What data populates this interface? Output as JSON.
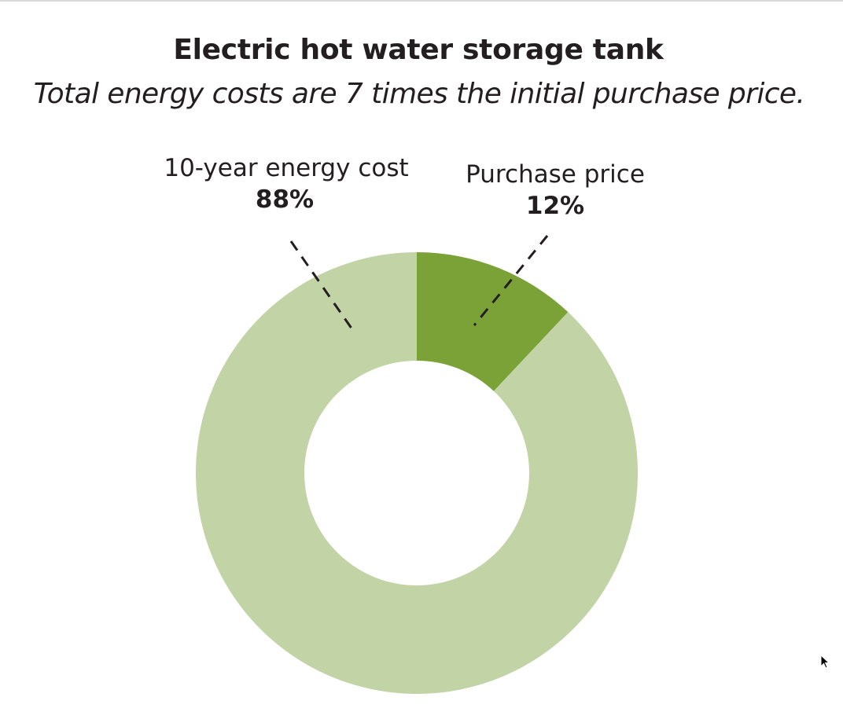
{
  "chart_data": {
    "type": "pie",
    "title": "Electric hot water storage tank",
    "subtitle": "Total energy costs are 7 times the initial purchase price.",
    "slices": [
      {
        "label": "Purchase price",
        "value": 12,
        "value_label": "12%",
        "color": "#7aa237"
      },
      {
        "label": "10-year energy cost",
        "value": 88,
        "value_label": "88%",
        "color": "#c2d3a6"
      }
    ],
    "donut": true,
    "label_style": "dashed-leader-lines",
    "start": "12 o'clock, clockwise"
  },
  "icons": {
    "cursor": "mouse-pointer-icon"
  }
}
